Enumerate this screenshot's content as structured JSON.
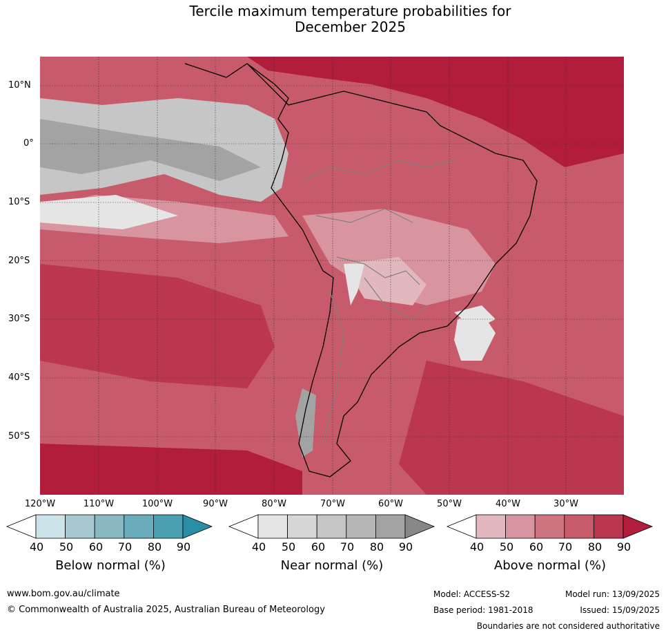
{
  "title": {
    "line1": "Tercile maximum temperature probabilities for",
    "line2": "December 2025"
  },
  "map": {
    "latitude_labels": [
      "10°N",
      "0°",
      "10°S",
      "20°S",
      "30°S",
      "40°S",
      "50°S"
    ],
    "longitude_labels": [
      "120°W",
      "110°W",
      "100°W",
      "90°W",
      "80°W",
      "70°W",
      "60°W",
      "50°W",
      "40°W",
      "30°W"
    ],
    "gridlines": true
  },
  "legends": [
    {
      "name": "Below normal (%)",
      "ticks": [
        "40",
        "50",
        "60",
        "70",
        "80",
        "90"
      ],
      "colors": [
        "#ffffff",
        "#cde3ea",
        "#a7c8cf",
        "#8ab8c1",
        "#6aacbb",
        "#4aa0b0",
        "#2a8ea6"
      ]
    },
    {
      "name": "Near normal (%)",
      "ticks": [
        "40",
        "50",
        "60",
        "70",
        "80",
        "90"
      ],
      "colors": [
        "#ffffff",
        "#e5e5e5",
        "#d6d6d6",
        "#c6c6c6",
        "#b6b6b6",
        "#a3a3a3",
        "#878787"
      ]
    },
    {
      "name": "Above normal (%)",
      "ticks": [
        "40",
        "50",
        "60",
        "70",
        "80",
        "90"
      ],
      "colors": [
        "#ffffff",
        "#e2b7be",
        "#d8959f",
        "#cd7582",
        "#c75a6b",
        "#bb3650",
        "#b21c3d"
      ]
    }
  ],
  "footer": {
    "url": "www.bom.gov.au/climate",
    "copyright": "© Commonwealth of Australia 2025, Australian Bureau of Meteorology",
    "model": "Model: ACCESS-S2",
    "base_period": "Base period: 1981-2018",
    "model_run": "Model run: 13/09/2025",
    "issued": "Issued: 15/09/2025",
    "disclaimer": "Boundaries are not considered authoritative"
  }
}
